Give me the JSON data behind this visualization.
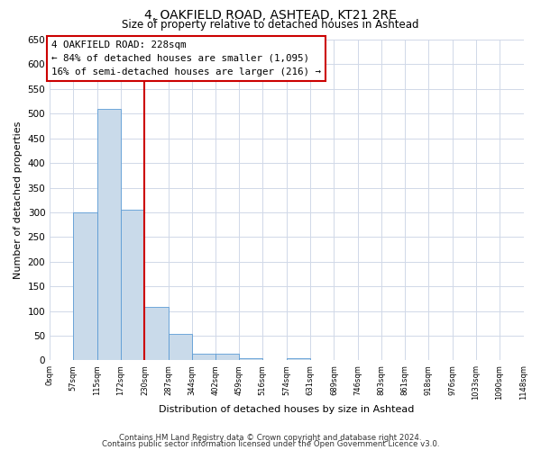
{
  "title": "4, OAKFIELD ROAD, ASHTEAD, KT21 2RE",
  "subtitle": "Size of property relative to detached houses in Ashtead",
  "xlabel": "Distribution of detached houses by size in Ashtead",
  "ylabel": "Number of detached properties",
  "bin_edges": [
    0,
    57,
    115,
    172,
    230,
    287,
    344,
    402,
    459,
    516,
    574,
    631,
    689,
    746,
    803,
    861,
    918,
    976,
    1033,
    1090,
    1148
  ],
  "bin_labels": [
    "0sqm",
    "57sqm",
    "115sqm",
    "172sqm",
    "230sqm",
    "287sqm",
    "344sqm",
    "402sqm",
    "459sqm",
    "516sqm",
    "574sqm",
    "631sqm",
    "689sqm",
    "746sqm",
    "803sqm",
    "861sqm",
    "918sqm",
    "976sqm",
    "1033sqm",
    "1090sqm",
    "1148sqm"
  ],
  "counts": [
    0,
    300,
    510,
    305,
    108,
    53,
    14,
    14,
    5,
    0,
    4,
    0,
    0,
    0,
    0,
    0,
    1,
    0,
    0,
    1
  ],
  "bar_color": "#c9daea",
  "bar_edge_color": "#5b9bd5",
  "property_line_x": 228,
  "property_line_color": "#cc0000",
  "annotation_text": "4 OAKFIELD ROAD: 228sqm\n← 84% of detached houses are smaller (1,095)\n16% of semi-detached houses are larger (216) →",
  "annotation_box_color": "#ffffff",
  "annotation_box_edge_color": "#cc0000",
  "ylim": [
    0,
    650
  ],
  "yticks": [
    0,
    50,
    100,
    150,
    200,
    250,
    300,
    350,
    400,
    450,
    500,
    550,
    600,
    650
  ],
  "footer1": "Contains HM Land Registry data © Crown copyright and database right 2024.",
  "footer2": "Contains public sector information licensed under the Open Government Licence v3.0.",
  "background_color": "#ffffff",
  "grid_color": "#d0d8e8"
}
